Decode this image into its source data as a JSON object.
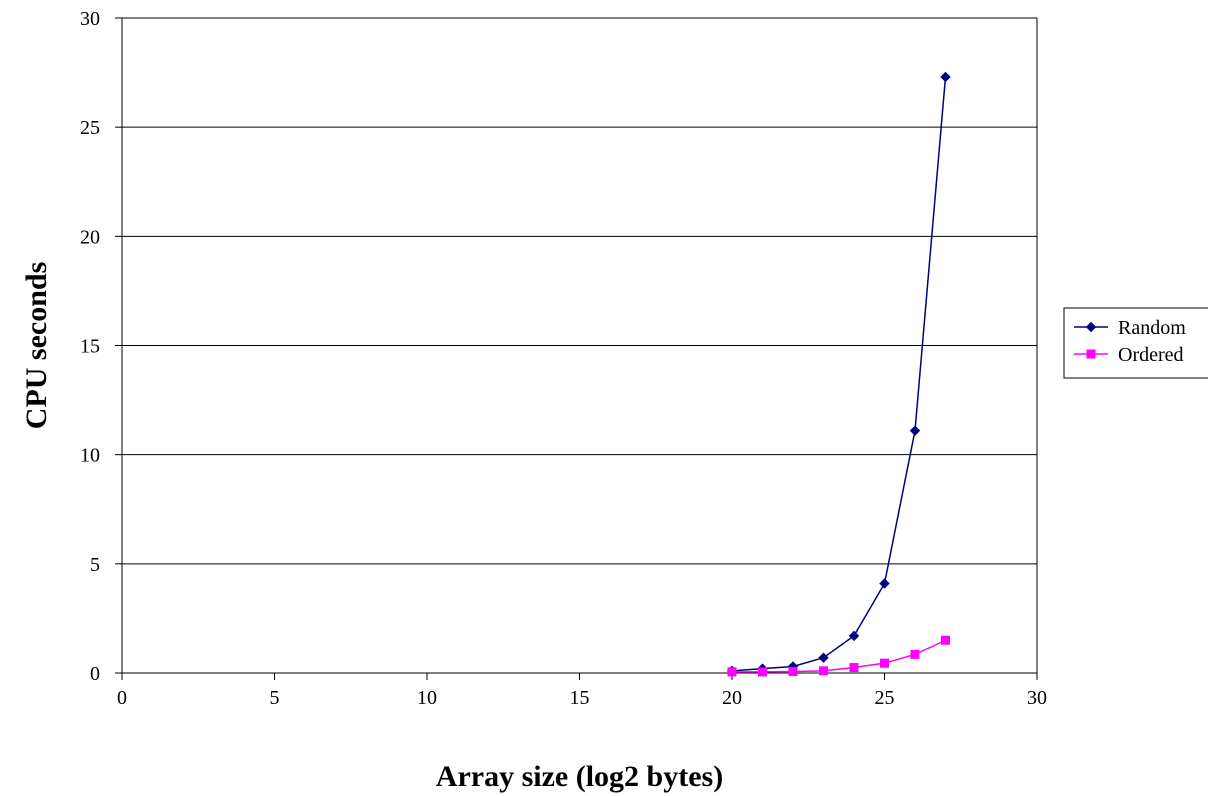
{
  "chart_data": {
    "type": "line",
    "title": "",
    "xlabel": "Array size (log2 bytes)",
    "ylabel": "CPU seconds",
    "xlim": [
      0,
      30
    ],
    "ylim": [
      0,
      30
    ],
    "x_ticks": [
      0,
      5,
      10,
      15,
      20,
      25,
      30
    ],
    "y_ticks": [
      0,
      5,
      10,
      15,
      20,
      25,
      30
    ],
    "x_tick_labels": [
      "0",
      "5",
      "10",
      "15",
      "20",
      "25",
      "30"
    ],
    "y_tick_labels": [
      "0",
      "5",
      "10",
      "15",
      "20",
      "25",
      "30"
    ],
    "grid": "horizontal",
    "legend_position": "right",
    "x": [
      20,
      21,
      22,
      23,
      24,
      25,
      26,
      27
    ],
    "series": [
      {
        "name": "Random",
        "color": "#000080",
        "marker": "diamond",
        "values": [
          0.1,
          0.2,
          0.3,
          0.7,
          1.7,
          4.1,
          11.1,
          27.3
        ]
      },
      {
        "name": "Ordered",
        "color": "#FF00FF",
        "marker": "square",
        "values": [
          0.05,
          0.05,
          0.07,
          0.1,
          0.25,
          0.45,
          0.85,
          1.5
        ]
      }
    ]
  }
}
